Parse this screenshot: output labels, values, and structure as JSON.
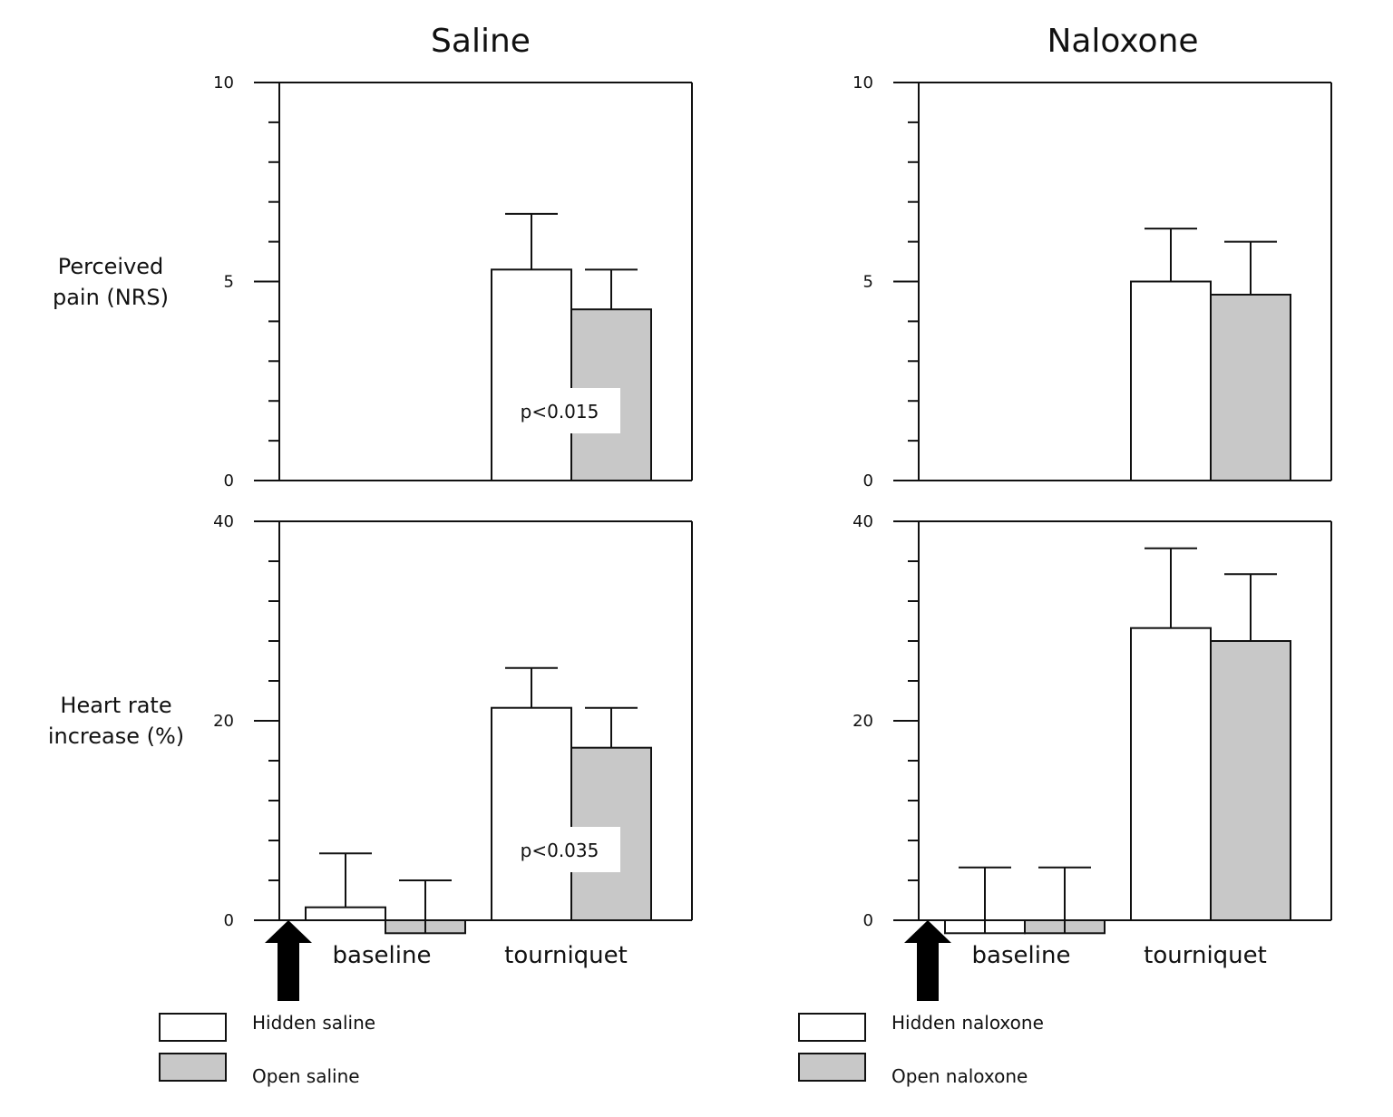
{
  "chart_data": [
    {
      "type": "bar",
      "panel": "saline-pain",
      "title": "Saline",
      "ylabel": "Perceived pain (NRS)",
      "ylabel_lines": [
        "Perceived",
        "pain (NRS)"
      ],
      "ylim": [
        0,
        10
      ],
      "yticks": [
        0,
        5,
        10
      ],
      "minor_step": 1,
      "categories": [
        "baseline",
        "tourniquet"
      ],
      "show_category_labels": false,
      "series": [
        {
          "name": "Hidden saline",
          "values": [
            null,
            5.3
          ],
          "errors": [
            null,
            1.4
          ],
          "color": "#ffffff"
        },
        {
          "name": "Open saline",
          "values": [
            null,
            4.3
          ],
          "errors": [
            null,
            1.0
          ],
          "color": "#c8c8c8"
        }
      ],
      "annotation": "p<0.015",
      "arrow": false
    },
    {
      "type": "bar",
      "panel": "naloxone-pain",
      "title": "Naloxone",
      "ylabel": "",
      "ylim": [
        0,
        10
      ],
      "yticks": [
        0,
        5,
        10
      ],
      "minor_step": 1,
      "categories": [
        "baseline",
        "tourniquet"
      ],
      "show_category_labels": false,
      "series": [
        {
          "name": "Hidden naloxone",
          "values": [
            null,
            5.0
          ],
          "errors": [
            null,
            1.33
          ],
          "color": "#ffffff"
        },
        {
          "name": "Open naloxone",
          "values": [
            null,
            4.67
          ],
          "errors": [
            null,
            1.33
          ],
          "color": "#c8c8c8"
        }
      ],
      "annotation": "",
      "arrow": false
    },
    {
      "type": "bar",
      "panel": "saline-hr",
      "title": "",
      "ylabel": "Heart rate increase (%)",
      "ylabel_lines": [
        "Heart rate",
        "increase (%)"
      ],
      "ylim": [
        0,
        40
      ],
      "yticks": [
        0,
        20,
        40
      ],
      "minor_step": 4,
      "categories": [
        "baseline",
        "tourniquet"
      ],
      "show_category_labels": true,
      "series": [
        {
          "name": "Hidden saline",
          "values": [
            1.3,
            21.3
          ],
          "errors": [
            5.4,
            4.0
          ],
          "color": "#ffffff"
        },
        {
          "name": "Open saline",
          "values": [
            -1.3,
            17.3
          ],
          "errors": [
            5.3,
            4.0
          ],
          "color": "#c8c8c8"
        }
      ],
      "annotation": "p<0.035",
      "arrow": true
    },
    {
      "type": "bar",
      "panel": "naloxone-hr",
      "title": "",
      "ylabel": "",
      "ylim": [
        0,
        40
      ],
      "yticks": [
        0,
        20,
        40
      ],
      "minor_step": 4,
      "categories": [
        "baseline",
        "tourniquet"
      ],
      "show_category_labels": true,
      "series": [
        {
          "name": "Hidden naloxone",
          "values": [
            -1.3,
            29.3
          ],
          "errors": [
            6.6,
            8.0
          ],
          "color": "#ffffff"
        },
        {
          "name": "Open naloxone",
          "values": [
            -1.3,
            28.0
          ],
          "errors": [
            6.6,
            6.7
          ],
          "color": "#c8c8c8"
        }
      ],
      "annotation": "",
      "arrow": true
    }
  ],
  "legends": [
    {
      "items": [
        {
          "label": "Hidden saline",
          "color": "#ffffff"
        },
        {
          "label": "Open saline",
          "color": "#c8c8c8"
        }
      ]
    },
    {
      "items": [
        {
          "label": "Hidden naloxone",
          "color": "#ffffff"
        },
        {
          "label": "Open naloxone",
          "color": "#c8c8c8"
        }
      ]
    }
  ]
}
